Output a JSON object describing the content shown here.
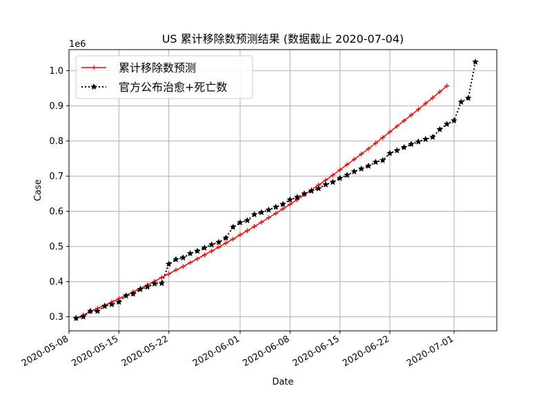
{
  "chart_data": {
    "type": "line",
    "title": "US 累计移除数预测结果 (数据截止 2020-07-04)",
    "xlabel": "Date",
    "ylabel": "Case",
    "y_multiplier": "1e6",
    "x_ticks": [
      "2020-05-08",
      "2020-05-15",
      "2020-05-22",
      "2020-06-01",
      "2020-06-08",
      "2020-06-15",
      "2020-06-22",
      "2020-07-01"
    ],
    "y_ticks": [
      "0.3",
      "0.4",
      "0.5",
      "0.6",
      "0.7",
      "0.8",
      "0.9",
      "1.0"
    ],
    "xlim": [
      "2020-05-08",
      "2020-07-07"
    ],
    "ylim": [
      260000,
      1060000
    ],
    "grid": true,
    "legend_position": "upper-left",
    "colors": {
      "prediction": "#ff0000",
      "official": "#000000"
    },
    "x_start": "2020-05-09",
    "series": [
      {
        "name": "累计移除数预测",
        "style": "solid-plus",
        "values": [
          296000,
          305000,
          315000,
          324000,
          333000,
          342000,
          352000,
          361000,
          371000,
          381000,
          391000,
          401000,
          412000,
          422000,
          433000,
          443000,
          454000,
          465000,
          476000,
          487000,
          498000,
          510000,
          521000,
          533000,
          545000,
          557000,
          569000,
          582000,
          594000,
          607000,
          620000,
          633000,
          647000,
          661000,
          675000,
          689000,
          703000,
          718000,
          733000,
          748000,
          763000,
          778000,
          794000,
          810000,
          826000,
          842000,
          858000,
          874000,
          890000,
          907000,
          923000,
          940000,
          957000
        ]
      },
      {
        "name": "官方公布治愈+死亡数",
        "style": "dotted-star",
        "values": [
          296000,
          300000,
          316000,
          316000,
          330000,
          335000,
          342000,
          360000,
          365000,
          378000,
          385000,
          394000,
          395000,
          450000,
          463000,
          468000,
          480000,
          487000,
          496000,
          505000,
          512000,
          524000,
          555000,
          568000,
          574000,
          591000,
          597000,
          604000,
          612000,
          620000,
          633000,
          640000,
          650000,
          658000,
          665000,
          676000,
          683000,
          694000,
          703000,
          713000,
          721000,
          729000,
          740000,
          745000,
          765000,
          773000,
          782000,
          791000,
          798000,
          805000,
          811000,
          833000,
          848000,
          858000,
          911000,
          922000,
          1025000
        ]
      }
    ]
  }
}
